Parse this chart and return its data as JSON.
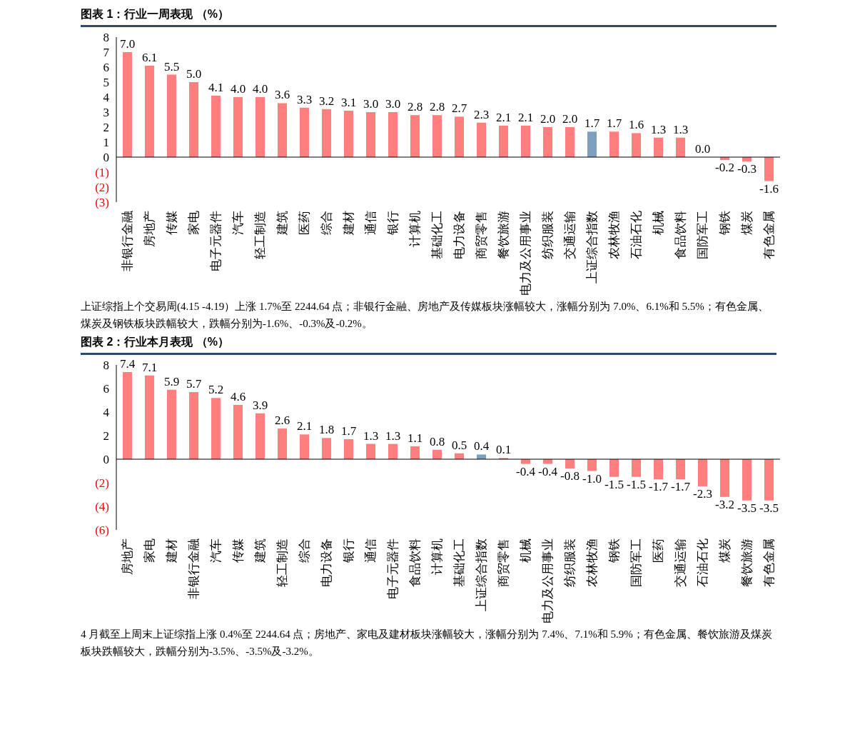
{
  "chart_data": [
    {
      "type": "bar",
      "title": "图表 1：行业一周表现 （%）",
      "categories": [
        "非银行金融",
        "房地产",
        "传媒",
        "家电",
        "电子元器件",
        "汽车",
        "轻工制造",
        "建筑",
        "医药",
        "综合",
        "建材",
        "通信",
        "银行",
        "计算机",
        "基础化工",
        "电力设备",
        "商贸零售",
        "餐饮旅游",
        "电力及公用事业",
        "纺织服装",
        "交通运输",
        "上证综合指数",
        "农林牧渔",
        "石油石化",
        "机械",
        "食品饮料",
        "国防军工",
        "钢铁",
        "煤炭",
        "有色金属"
      ],
      "values": [
        7.0,
        6.1,
        5.5,
        5.0,
        4.1,
        4.0,
        4.0,
        3.6,
        3.3,
        3.2,
        3.1,
        3.0,
        3.0,
        2.8,
        2.8,
        2.7,
        2.3,
        2.1,
        2.1,
        2.0,
        2.0,
        1.7,
        1.7,
        1.6,
        1.3,
        1.3,
        0.0,
        -0.2,
        -0.3,
        -1.6
      ],
      "value_labels": [
        "7.0",
        "6.1",
        "5.5",
        "5.0",
        "4.1",
        "4.0",
        "4.0",
        "3.6",
        "3.3",
        "3.2",
        "3.1",
        "3.0",
        "3.0",
        "2.8",
        "2.8",
        "2.7",
        "2.3",
        "2.1",
        "2.1",
        "2.0",
        "2.0",
        "1.7",
        "1.7",
        "1.6",
        "1.3",
        "1.3",
        "0.0",
        "-0.2",
        "-0.3",
        "-1.6"
      ],
      "colors": [
        "#ff7f7f",
        "#ff7f7f",
        "#ff7f7f",
        "#ff7f7f",
        "#ff7f7f",
        "#ff7f7f",
        "#ff7f7f",
        "#ff7f7f",
        "#ff7f7f",
        "#ff7f7f",
        "#ff7f7f",
        "#ff7f7f",
        "#ff7f7f",
        "#ff7f7f",
        "#ff7f7f",
        "#ff7f7f",
        "#ff7f7f",
        "#ff7f7f",
        "#ff7f7f",
        "#ff7f7f",
        "#ff7f7f",
        "#7f9fbf",
        "#ff7f7f",
        "#ff7f7f",
        "#ff7f7f",
        "#ff7f7f",
        "#ff7f7f",
        "#ff7f7f",
        "#ff7f7f",
        "#ff7f7f"
      ],
      "ylim": [
        -3,
        8
      ],
      "yticks": [
        {
          "value": -3,
          "label": "(3)"
        },
        {
          "value": -2,
          "label": "(2)"
        },
        {
          "value": -1,
          "label": "(1)"
        },
        0,
        1,
        2,
        3,
        4,
        5,
        6,
        7,
        8
      ],
      "annotations": [
        "上证综指上个交易周(4.15  -4.19）上涨 1.7%至 2244.64 点；非银行金融、房地产及传媒板块涨幅较大，涨幅分别为 7.0%、6.1%和 5.5%；有色金属、煤炭及钢铁板块跌幅较大，跌幅分别为-1.6%、-0.3%及-0.2%。"
      ]
    },
    {
      "type": "bar",
      "title": "图表 2：行业本月表现 （%）",
      "categories": [
        "房地产",
        "家电",
        "建材",
        "非银行金融",
        "汽车",
        "传媒",
        "建筑",
        "轻工制造",
        "综合",
        "电力设备",
        "银行",
        "通信",
        "电子元器件",
        "食品饮料",
        "计算机",
        "基础化工",
        "上证综合指数",
        "商贸零售",
        "机械",
        "电力及公用事业",
        "纺织服装",
        "农林牧渔",
        "钢铁",
        "国防军工",
        "医药",
        "交通运输",
        "石油石化",
        "煤炭",
        "餐饮旅游",
        "有色金属"
      ],
      "values": [
        7.4,
        7.1,
        5.9,
        5.7,
        5.2,
        4.6,
        3.9,
        2.6,
        2.1,
        1.8,
        1.7,
        1.3,
        1.3,
        1.1,
        0.8,
        0.5,
        0.4,
        0.1,
        -0.4,
        -0.4,
        -0.8,
        -1.0,
        -1.5,
        -1.5,
        -1.7,
        -1.7,
        -2.3,
        -3.2,
        -3.5,
        -3.5
      ],
      "value_labels": [
        "7.4",
        "7.1",
        "5.9",
        "5.7",
        "5.2",
        "4.6",
        "3.9",
        "2.6",
        "2.1",
        "1.8",
        "1.7",
        "1.3",
        "1.3",
        "1.1",
        "0.8",
        "0.5",
        "0.4",
        "0.1",
        "-0.4",
        "-0.4",
        "-0.8",
        "-1.0",
        "-1.5",
        "-1.5",
        "-1.7",
        "-1.7",
        "-2.3",
        "-3.2",
        "-3.5",
        "-3.5"
      ],
      "colors": [
        "#ff7f7f",
        "#ff7f7f",
        "#ff7f7f",
        "#ff7f7f",
        "#ff7f7f",
        "#ff7f7f",
        "#ff7f7f",
        "#ff7f7f",
        "#ff7f7f",
        "#ff7f7f",
        "#ff7f7f",
        "#ff7f7f",
        "#ff7f7f",
        "#ff7f7f",
        "#ff7f7f",
        "#ff7f7f",
        "#7f9fbf",
        "#ff7f7f",
        "#ff7f7f",
        "#ff7f7f",
        "#ff7f7f",
        "#ff7f7f",
        "#ff7f7f",
        "#ff7f7f",
        "#ff7f7f",
        "#ff7f7f",
        "#ff7f7f",
        "#ff7f7f",
        "#ff7f7f",
        "#ff7f7f"
      ],
      "ylim": [
        -6,
        8
      ],
      "yticks": [
        {
          "value": -6,
          "label": "(6)"
        },
        {
          "value": -4,
          "label": "(4)"
        },
        {
          "value": -2,
          "label": "(2)"
        },
        0,
        2,
        4,
        6,
        8
      ],
      "annotations": [
        "4 月截至上周末上证综指上涨 0.4%至 2244.64 点；房地产、家电及建材板块涨幅较大，涨幅分别为 7.4%、7.1%和 5.9%；有色金属、餐饮旅游及煤炭板块跌幅较大，跌幅分别为-3.5%、-3.5%及-3.2%。"
      ]
    }
  ]
}
